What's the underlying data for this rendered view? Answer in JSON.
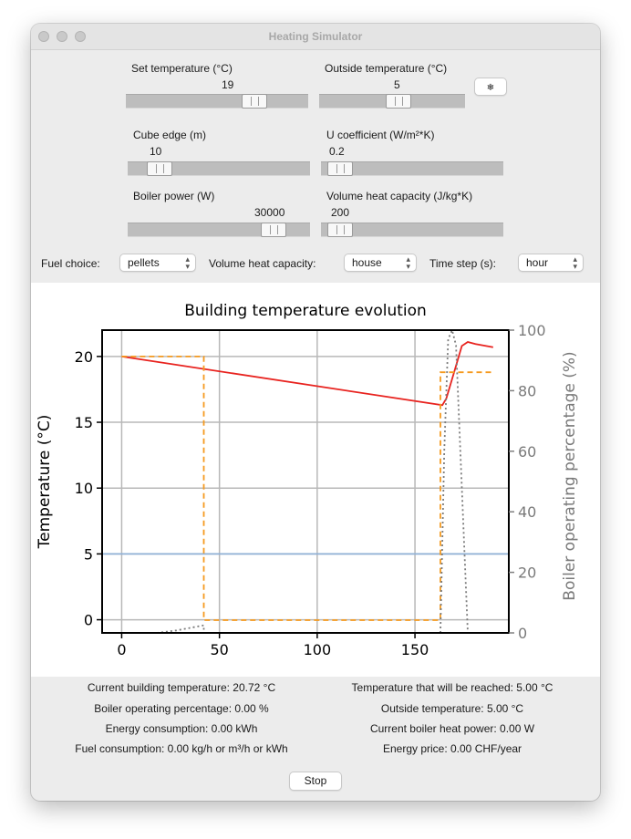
{
  "window": {
    "title": "Heating Simulator"
  },
  "controls": {
    "set_temperature": {
      "label": "Set temperature (°C)",
      "value": "19",
      "fraction": 0.74
    },
    "outside_temperature": {
      "label": "Outside temperature (°C)",
      "value": "5",
      "fraction": 0.55
    },
    "snow_button": {
      "label": "❄"
    },
    "cube_edge": {
      "label": "Cube edge (m)",
      "value": "10",
      "fraction": 0.12
    },
    "u_coefficient": {
      "label": "U coefficient (W/m²*K)",
      "value": "0.2",
      "fraction": 0.04
    },
    "boiler_power": {
      "label": "Boiler power (W)",
      "value": "30000",
      "fraction": 0.85
    },
    "volume_heat_capacity": {
      "label": "Volume heat capacity (J/kg*K)",
      "value": "200",
      "fraction": 0.04
    }
  },
  "selectors": {
    "fuel_label": "Fuel choice:",
    "fuel_value": "pellets",
    "vhc_label": "Volume heat capacity:",
    "vhc_value": "house",
    "timestep_label": "Time step (s):",
    "timestep_value": "hour"
  },
  "chart_data": {
    "type": "line",
    "title": "Building temperature evolution",
    "ylabel": "Temperature (°C)",
    "y2label": "Boiler operating percentage (%)",
    "xlim": [
      -10,
      198
    ],
    "ylim": [
      -1,
      22
    ],
    "y2lim": [
      0,
      100
    ],
    "xticks": [
      0,
      50,
      100,
      150
    ],
    "yticks": [
      0,
      5,
      10,
      15,
      20
    ],
    "y2ticks": [
      0,
      20,
      40,
      60,
      80,
      100
    ],
    "grid": true,
    "series": [
      {
        "axis": "left",
        "style": "solid",
        "color": "#e8231f",
        "x": [
          0,
          164,
          166,
          170,
          174,
          177,
          181,
          190
        ],
        "y": [
          20,
          16.3,
          16.8,
          18.8,
          20.8,
          21.1,
          20.95,
          20.7
        ]
      },
      {
        "axis": "left",
        "style": "solid",
        "color": "#8fb0d6",
        "x": [
          -10,
          198
        ],
        "y": [
          5,
          5
        ]
      },
      {
        "axis": "left",
        "style": "dashed",
        "color": "#f59a1f",
        "x": [
          0,
          42,
          42,
          163,
          163,
          189
        ],
        "y": [
          20,
          20,
          -0.03,
          -0.03,
          18.8,
          18.8
        ]
      },
      {
        "axis": "right",
        "style": "dotted",
        "color": "#7c7c7c",
        "x": [
          18,
          28,
          42,
          42,
          163,
          165,
          167,
          169,
          171,
          177
        ],
        "y": [
          0,
          0.8,
          2.5,
          0,
          0,
          60,
          97,
          100,
          95,
          0
        ]
      }
    ]
  },
  "status": {
    "current_building_temperature": "Current building temperature: 20.72 °C",
    "temperature_reached": "Temperature that will be reached: 5.00 °C",
    "boiler_operating_percentage": "Boiler operating percentage: 0.00 %",
    "outside_temperature": "Outside temperature: 5.00 °C",
    "energy_consumption": "Energy consumption: 0.00 kWh",
    "boiler_heat_power": "Current boiler heat power: 0.00 W",
    "fuel_consumption": "Fuel consumption: 0.00 kg/h or m³/h or kWh",
    "energy_price": "Energy price: 0.00 CHF/year"
  },
  "stop_button": {
    "label": "Stop"
  }
}
